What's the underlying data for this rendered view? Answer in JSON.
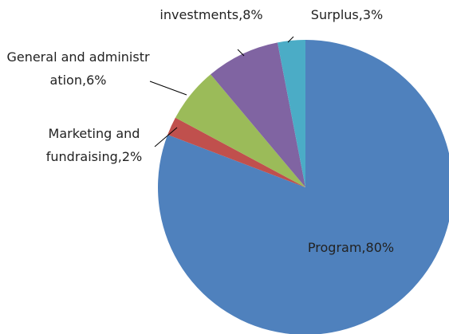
{
  "chart_data": {
    "type": "pie",
    "values": [
      80,
      2,
      6,
      8,
      3
    ],
    "value_labels": [
      "Program,80%",
      "Marketing and fundraising,2%",
      "General and administration,6%",
      "investments,8%",
      "Surplus,3%"
    ],
    "colors": [
      "#4f81bd",
      "#c0504d",
      "#9bbb59",
      "#8064a2",
      "#4bacc6"
    ]
  }
}
